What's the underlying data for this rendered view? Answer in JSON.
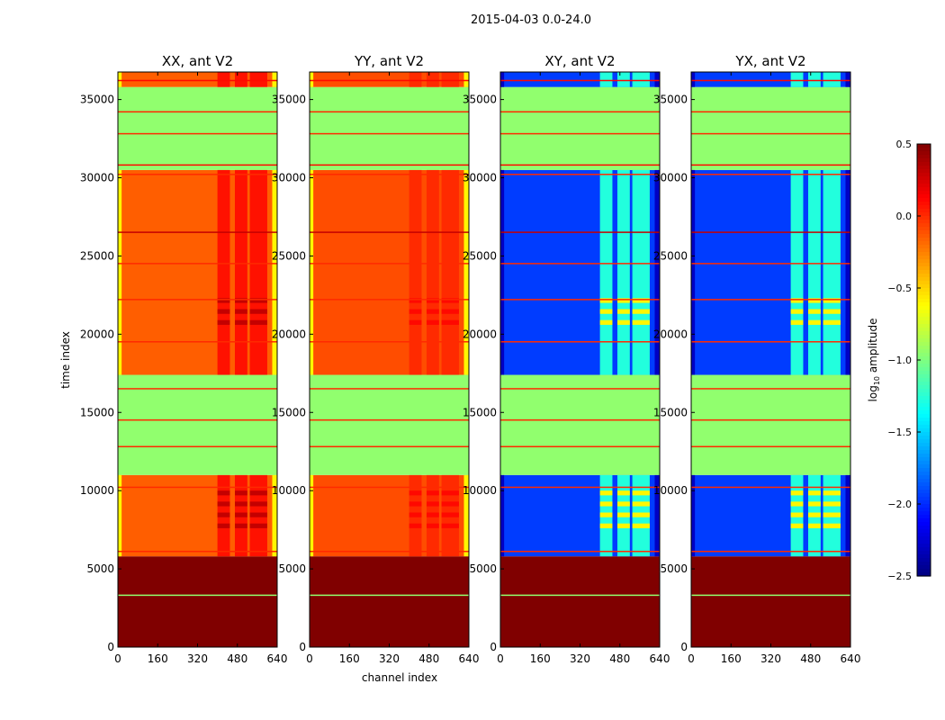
{
  "suptitle": "2015-04-03 0.0-24.0",
  "chart_data": {
    "type": "heatmap",
    "xlabel": "channel index",
    "ylabel": "time index",
    "xlim": [
      0,
      640
    ],
    "ylim": [
      0,
      36760
    ],
    "xticks": [
      "0",
      "160",
      "320",
      "480",
      "640"
    ],
    "yticks": [
      "0",
      "5000",
      "10000",
      "15000",
      "20000",
      "25000",
      "30000",
      "35000"
    ],
    "colorbar": {
      "label": "log10 amplitude",
      "label_main": "log",
      "label_sub": "10",
      "label_tail": " amplitude",
      "range": [
        -2.5,
        0.5
      ],
      "ticks": [
        "0.5",
        "0.0",
        "−0.5",
        "−1.0",
        "−1.5",
        "−2.0",
        "−2.5"
      ],
      "colormap": "jet"
    },
    "panels": [
      {
        "title": "XX, ant V2",
        "base": -0.15,
        "hot": 0.3,
        "edge": -0.6
      },
      {
        "title": "YY, ant V2",
        "base": -0.1,
        "hot": 0.1,
        "edge": -0.6
      },
      {
        "title": "XY, ant V2",
        "base": -1.95,
        "hot": -0.6,
        "edge": -2.3
      },
      {
        "title": "YX, ant V2",
        "base": -1.95,
        "hot": -0.6,
        "edge": -2.3
      }
    ],
    "time_bands": [
      {
        "t0": 0,
        "t1": 5800,
        "kind": "flag",
        "v": 0.5
      },
      {
        "t0": 5800,
        "t1": 11000,
        "kind": "data"
      },
      {
        "t0": 11000,
        "t1": 17400,
        "kind": "flag",
        "v": -0.95
      },
      {
        "t0": 17400,
        "t1": 30500,
        "kind": "data"
      },
      {
        "t0": 30500,
        "t1": 35800,
        "kind": "flag",
        "v": -0.95
      },
      {
        "t0": 35800,
        "t1": 36760,
        "kind": "data"
      }
    ],
    "lines": [
      {
        "t": 3300,
        "v": -0.95
      },
      {
        "t": 6100,
        "v": 0.0
      },
      {
        "t": 10200,
        "v": 0.0
      },
      {
        "t": 12800,
        "v": 0.0
      },
      {
        "t": 14500,
        "v": 0.0
      },
      {
        "t": 16500,
        "v": 0.0
      },
      {
        "t": 19500,
        "v": 0.0
      },
      {
        "t": 22200,
        "v": 0.0
      },
      {
        "t": 24500,
        "v": 0.0
      },
      {
        "t": 26500,
        "v": 0.3
      },
      {
        "t": 30200,
        "v": 0.0
      },
      {
        "t": 30800,
        "v": 0.1
      },
      {
        "t": 32800,
        "v": 0.0
      },
      {
        "t": 34200,
        "v": 0.0
      },
      {
        "t": 36200,
        "v": 0.1
      }
    ],
    "hot_channels": [
      [
        400,
        450
      ],
      [
        470,
        520
      ],
      [
        530,
        600
      ]
    ]
  }
}
